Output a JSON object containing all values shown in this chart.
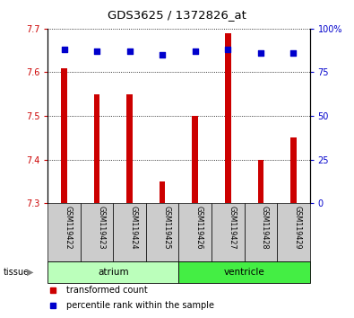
{
  "title": "GDS3625 / 1372826_at",
  "samples": [
    "GSM119422",
    "GSM119423",
    "GSM119424",
    "GSM119425",
    "GSM119426",
    "GSM119427",
    "GSM119428",
    "GSM119429"
  ],
  "transformed_counts": [
    7.61,
    7.55,
    7.55,
    7.35,
    7.5,
    7.69,
    7.4,
    7.45
  ],
  "percentile_ranks": [
    88,
    87,
    87,
    85,
    87,
    88,
    86,
    86
  ],
  "ylim_left": [
    7.3,
    7.7
  ],
  "yticks_left": [
    7.3,
    7.4,
    7.5,
    7.6,
    7.7
  ],
  "ylim_right": [
    0,
    100
  ],
  "yticks_right": [
    0,
    25,
    50,
    75,
    100
  ],
  "bar_color": "#cc0000",
  "dot_color": "#0000cc",
  "bar_bottom": 7.3,
  "tissue_groups": [
    {
      "label": "atrium",
      "start": 0,
      "end": 4,
      "color": "#bbffbb"
    },
    {
      "label": "ventricle",
      "start": 4,
      "end": 8,
      "color": "#44ee44"
    }
  ],
  "tissue_label": "tissue",
  "legend_bar_label": "transformed count",
  "legend_dot_label": "percentile rank within the sample",
  "bar_label_color": "#cc0000",
  "dot_label_color": "#0000cc",
  "background_color": "#ffffff",
  "sample_box_color": "#cccccc",
  "bar_width": 0.18
}
